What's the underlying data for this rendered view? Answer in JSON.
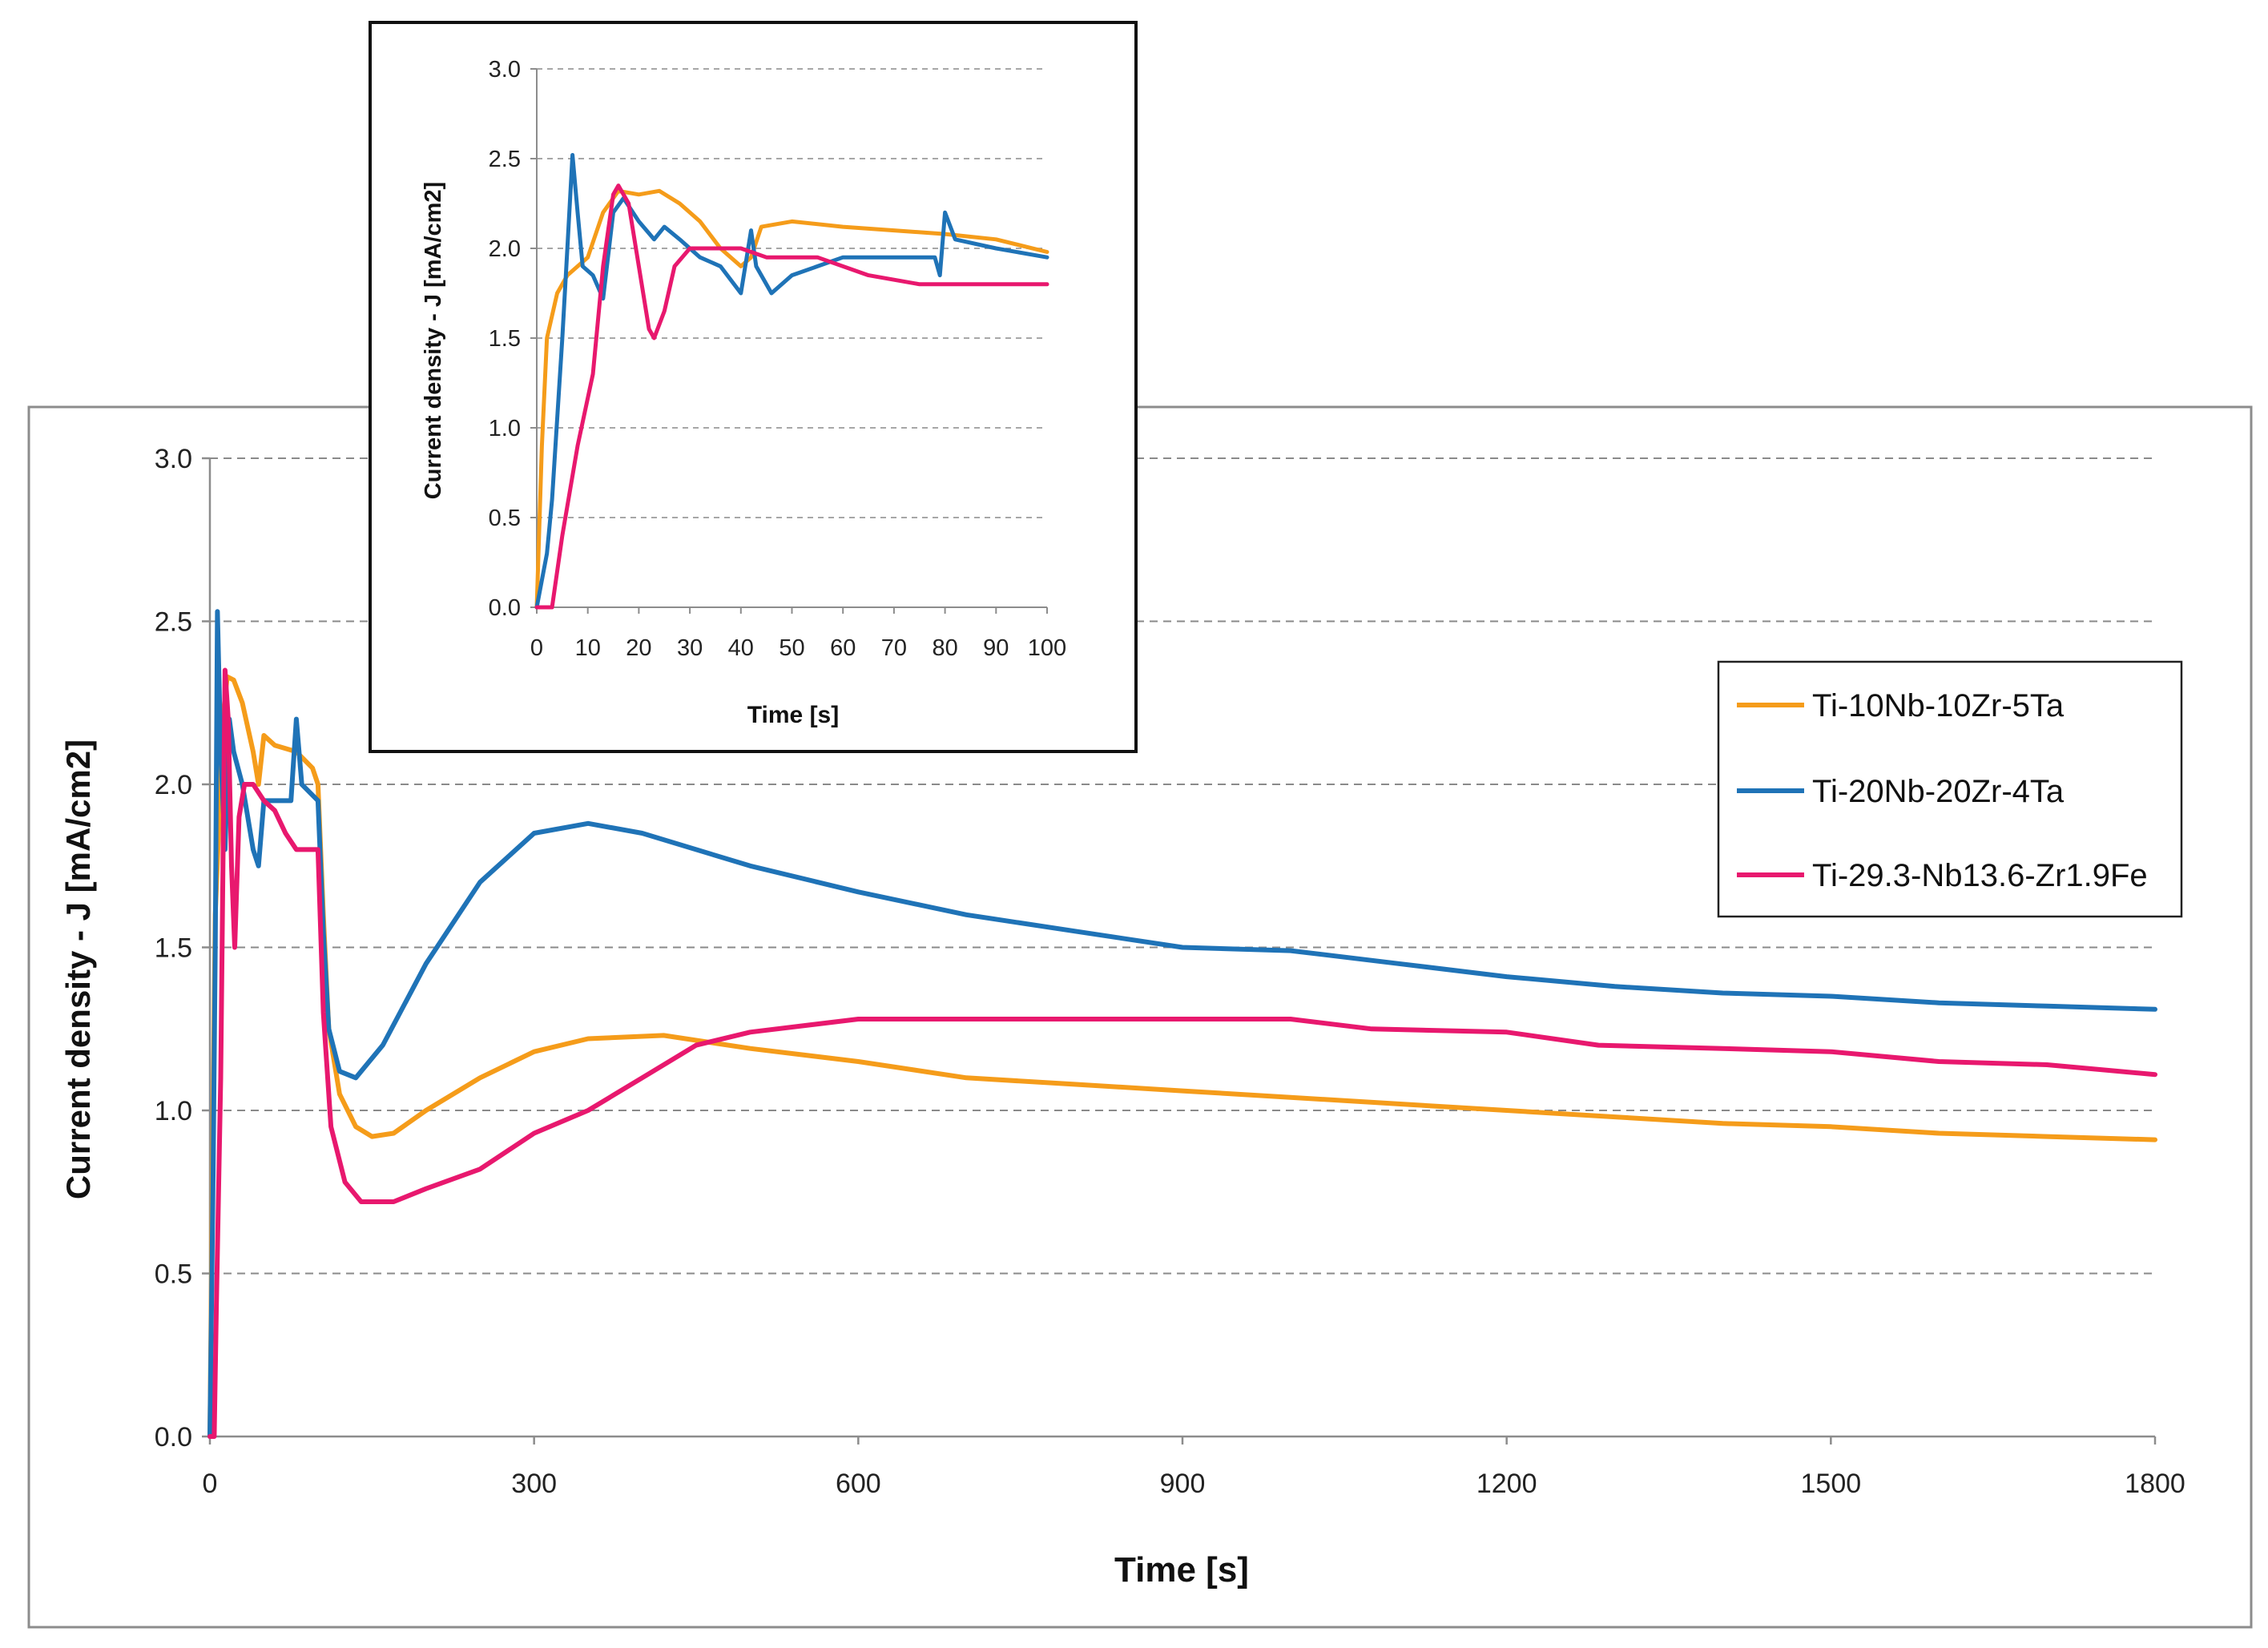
{
  "chart_data": [
    {
      "type": "line",
      "title": "",
      "xlabel": "Time [s]",
      "ylabel": "Current density - J [mA/cm2]",
      "xlim": [
        0,
        1800
      ],
      "ylim": [
        0,
        3.0
      ],
      "xticks": [
        0,
        300,
        600,
        900,
        1200,
        1500,
        1800
      ],
      "yticks": [
        0.0,
        0.5,
        1.0,
        1.5,
        2.0,
        2.5,
        3.0
      ],
      "grid": "horizontal dashed",
      "legend": "right",
      "series": [
        {
          "name": "Ti-10Nb-10Zr-5Ta",
          "color": "#F59C1A",
          "points": [
            [
              0,
              0
            ],
            [
              3,
              1.0
            ],
            [
              5,
              1.6
            ],
            [
              8,
              1.85
            ],
            [
              12,
              2.2
            ],
            [
              16,
              2.33
            ],
            [
              22,
              2.32
            ],
            [
              30,
              2.25
            ],
            [
              40,
              2.1
            ],
            [
              45,
              2.0
            ],
            [
              50,
              2.15
            ],
            [
              60,
              2.12
            ],
            [
              80,
              2.1
            ],
            [
              95,
              2.05
            ],
            [
              100,
              2.0
            ],
            [
              105,
              1.6
            ],
            [
              110,
              1.25
            ],
            [
              120,
              1.05
            ],
            [
              135,
              0.95
            ],
            [
              150,
              0.92
            ],
            [
              170,
              0.93
            ],
            [
              200,
              1.0
            ],
            [
              250,
              1.1
            ],
            [
              300,
              1.18
            ],
            [
              350,
              1.22
            ],
            [
              420,
              1.23
            ],
            [
              500,
              1.19
            ],
            [
              600,
              1.15
            ],
            [
              700,
              1.1
            ],
            [
              800,
              1.08
            ],
            [
              900,
              1.06
            ],
            [
              1000,
              1.04
            ],
            [
              1100,
              1.02
            ],
            [
              1200,
              1.0
            ],
            [
              1300,
              0.98
            ],
            [
              1400,
              0.96
            ],
            [
              1500,
              0.95
            ],
            [
              1600,
              0.93
            ],
            [
              1700,
              0.92
            ],
            [
              1800,
              0.91
            ]
          ]
        },
        {
          "name": "Ti-20Nb-20Zr-4Ta",
          "color": "#1F73B7",
          "points": [
            [
              0,
              0
            ],
            [
              3,
              0.8
            ],
            [
              5,
              1.5
            ],
            [
              7,
              2.53
            ],
            [
              10,
              2.1
            ],
            [
              14,
              1.8
            ],
            [
              18,
              2.2
            ],
            [
              22,
              2.1
            ],
            [
              30,
              2.0
            ],
            [
              40,
              1.8
            ],
            [
              45,
              1.75
            ],
            [
              50,
              1.95
            ],
            [
              60,
              1.95
            ],
            [
              75,
              1.95
            ],
            [
              80,
              2.2
            ],
            [
              85,
              2.0
            ],
            [
              100,
              1.95
            ],
            [
              105,
              1.55
            ],
            [
              110,
              1.25
            ],
            [
              120,
              1.12
            ],
            [
              135,
              1.1
            ],
            [
              160,
              1.2
            ],
            [
              200,
              1.45
            ],
            [
              250,
              1.7
            ],
            [
              300,
              1.85
            ],
            [
              350,
              1.88
            ],
            [
              400,
              1.85
            ],
            [
              500,
              1.75
            ],
            [
              600,
              1.67
            ],
            [
              700,
              1.6
            ],
            [
              800,
              1.55
            ],
            [
              900,
              1.5
            ],
            [
              1000,
              1.49
            ],
            [
              1100,
              1.45
            ],
            [
              1200,
              1.41
            ],
            [
              1300,
              1.38
            ],
            [
              1400,
              1.36
            ],
            [
              1500,
              1.35
            ],
            [
              1600,
              1.33
            ],
            [
              1700,
              1.32
            ],
            [
              1800,
              1.31
            ]
          ]
        },
        {
          "name": "Ti-29.3-Nb13.6-Zr1.9Fe",
          "color": "#E8186E",
          "points": [
            [
              0,
              0
            ],
            [
              4,
              0
            ],
            [
              6,
              0.4
            ],
            [
              10,
              1.1
            ],
            [
              14,
              2.35
            ],
            [
              17,
              2.2
            ],
            [
              20,
              1.75
            ],
            [
              23,
              1.5
            ],
            [
              27,
              1.9
            ],
            [
              32,
              2.0
            ],
            [
              40,
              2.0
            ],
            [
              50,
              1.95
            ],
            [
              60,
              1.92
            ],
            [
              70,
              1.85
            ],
            [
              80,
              1.8
            ],
            [
              100,
              1.8
            ],
            [
              105,
              1.3
            ],
            [
              112,
              0.95
            ],
            [
              125,
              0.78
            ],
            [
              140,
              0.72
            ],
            [
              170,
              0.72
            ],
            [
              200,
              0.76
            ],
            [
              250,
              0.82
            ],
            [
              300,
              0.93
            ],
            [
              350,
              1.0
            ],
            [
              400,
              1.1
            ],
            [
              450,
              1.2
            ],
            [
              500,
              1.24
            ],
            [
              600,
              1.28
            ],
            [
              700,
              1.28
            ],
            [
              800,
              1.28
            ],
            [
              900,
              1.28
            ],
            [
              1000,
              1.28
            ],
            [
              1075,
              1.25
            ],
            [
              1200,
              1.24
            ],
            [
              1285,
              1.2
            ],
            [
              1400,
              1.19
            ],
            [
              1500,
              1.18
            ],
            [
              1600,
              1.15
            ],
            [
              1700,
              1.14
            ],
            [
              1800,
              1.11
            ]
          ]
        }
      ]
    },
    {
      "type": "line",
      "title": "",
      "xlabel": "Time [s]",
      "ylabel": "Current density - J [mA/cm2]",
      "xlim": [
        0,
        100
      ],
      "ylim": [
        0,
        3.0
      ],
      "xticks": [
        0,
        10,
        20,
        30,
        40,
        50,
        60,
        70,
        80,
        90,
        100
      ],
      "yticks": [
        0.0,
        0.5,
        1.0,
        1.5,
        2.0,
        2.5,
        3.0
      ],
      "grid": "horizontal dashed",
      "series": [
        {
          "name": "Ti-10Nb-10Zr-5Ta",
          "color": "#F59C1A",
          "points": [
            [
              0,
              0
            ],
            [
              1,
              0.9
            ],
            [
              2,
              1.5
            ],
            [
              4,
              1.75
            ],
            [
              6,
              1.85
            ],
            [
              10,
              1.95
            ],
            [
              13,
              2.2
            ],
            [
              16,
              2.32
            ],
            [
              20,
              2.3
            ],
            [
              24,
              2.32
            ],
            [
              28,
              2.25
            ],
            [
              32,
              2.15
            ],
            [
              36,
              2.0
            ],
            [
              40,
              1.9
            ],
            [
              42,
              1.95
            ],
            [
              44,
              2.12
            ],
            [
              50,
              2.15
            ],
            [
              60,
              2.12
            ],
            [
              70,
              2.1
            ],
            [
              80,
              2.08
            ],
            [
              90,
              2.05
            ],
            [
              100,
              1.98
            ]
          ]
        },
        {
          "name": "Ti-20Nb-20Zr-4Ta",
          "color": "#1F73B7",
          "points": [
            [
              0,
              0
            ],
            [
              2,
              0.3
            ],
            [
              3,
              0.6
            ],
            [
              5,
              1.5
            ],
            [
              6,
              2.0
            ],
            [
              7,
              2.52
            ],
            [
              8,
              2.2
            ],
            [
              9,
              1.9
            ],
            [
              11,
              1.85
            ],
            [
              13,
              1.72
            ],
            [
              15,
              2.2
            ],
            [
              17,
              2.28
            ],
            [
              20,
              2.15
            ],
            [
              23,
              2.05
            ],
            [
              25,
              2.12
            ],
            [
              28,
              2.05
            ],
            [
              32,
              1.95
            ],
            [
              36,
              1.9
            ],
            [
              40,
              1.75
            ],
            [
              42,
              2.1
            ],
            [
              43,
              1.9
            ],
            [
              46,
              1.75
            ],
            [
              50,
              1.85
            ],
            [
              55,
              1.9
            ],
            [
              60,
              1.95
            ],
            [
              70,
              1.95
            ],
            [
              78,
              1.95
            ],
            [
              79,
              1.85
            ],
            [
              80,
              2.2
            ],
            [
              82,
              2.05
            ],
            [
              90,
              2.0
            ],
            [
              100,
              1.95
            ]
          ]
        },
        {
          "name": "Ti-29.3-Nb13.6-Zr1.9Fe",
          "color": "#E8186E",
          "points": [
            [
              0,
              0
            ],
            [
              3,
              0
            ],
            [
              5,
              0.4
            ],
            [
              8,
              0.9
            ],
            [
              11,
              1.3
            ],
            [
              13,
              1.9
            ],
            [
              15,
              2.3
            ],
            [
              16,
              2.35
            ],
            [
              18,
              2.25
            ],
            [
              20,
              1.9
            ],
            [
              22,
              1.55
            ],
            [
              23,
              1.5
            ],
            [
              25,
              1.65
            ],
            [
              27,
              1.9
            ],
            [
              30,
              2.0
            ],
            [
              35,
              2.0
            ],
            [
              40,
              2.0
            ],
            [
              45,
              1.95
            ],
            [
              55,
              1.95
            ],
            [
              65,
              1.85
            ],
            [
              75,
              1.8
            ],
            [
              100,
              1.8
            ]
          ]
        }
      ]
    }
  ]
}
